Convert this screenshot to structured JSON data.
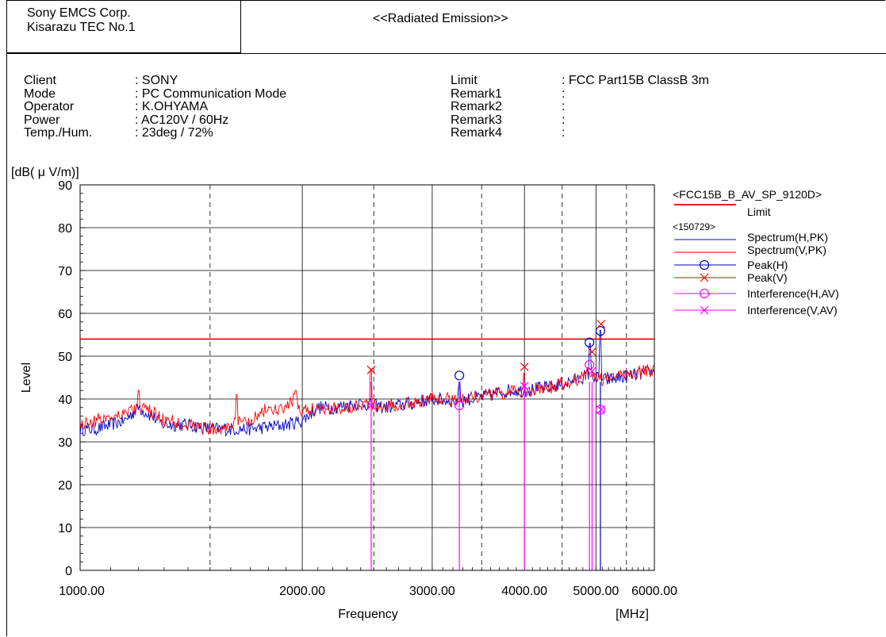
{
  "header": {
    "company_line1": "Sony EMCS Corp.",
    "company_line2": "Kisarazu TEC No.1",
    "title": "<<Radiated Emission>>"
  },
  "info": {
    "labels": [
      "Client",
      "Mode",
      "Operator",
      "Power",
      "Temp./Hum."
    ],
    "values": [
      ": SONY",
      ": PC Communication Mode",
      ": K.OHYAMA",
      ": AC120V / 60Hz",
      ": 23deg / 72%"
    ],
    "right_labels": [
      "Limit",
      "Remark1",
      "Remark2",
      "Remark3",
      "Remark4"
    ],
    "right_values": [
      ": FCC Part15B ClassB 3m",
      ":",
      ":",
      ":",
      ":"
    ]
  },
  "legend": {
    "limit_file": "<FCC15B_B_AV_SP_9120D>",
    "limit_label": "Limit",
    "data_file": "<150729>",
    "items": [
      "Spectrum(H,PK)",
      "Spectrum(V,PK)",
      "Peak(H)",
      "Peak(V)",
      "Interference(H,AV)",
      "Interference(V,AV)"
    ]
  },
  "colors": {
    "limit": "#e00000",
    "spectrum_h": "#0000cc",
    "spectrum_v": "#ff0000",
    "peak_h": "#0000cc",
    "peak_v": "#ff0000",
    "interference": "#ff00ff"
  },
  "chart_data": {
    "type": "line",
    "ylabel_unit": "[dB( μ V/m)]",
    "ylabel": "Level",
    "xlabel": "Frequency",
    "xunit": "[MHz]",
    "x_scale": "log",
    "xlim": [
      1000,
      6000
    ],
    "ylim": [
      0,
      90
    ],
    "y_ticks": [
      "0",
      "10",
      "20",
      "30",
      "40",
      "50",
      "60",
      "70",
      "80",
      "90"
    ],
    "x_tick_labels": [
      {
        "value": 1000,
        "label": "1000.00"
      },
      {
        "value": 2000,
        "label": "2000.00"
      },
      {
        "value": 3000,
        "label": "3000.00"
      },
      {
        "value": 4000,
        "label": "4000.00"
      },
      {
        "value": 5000,
        "label": "5000.00"
      },
      {
        "value": 6000,
        "label": "6000.00"
      }
    ],
    "grid": true,
    "legend_position": "right",
    "limit_line": {
      "name": "Limit",
      "value": 54
    },
    "series": [
      {
        "name": "Spectrum(H,PK)",
        "x": [
          1000,
          1050,
          1100,
          1150,
          1200,
          1250,
          1300,
          1400,
          1500,
          1550,
          1600,
          1700,
          1800,
          1900,
          2000,
          2100,
          2200,
          2300,
          2400,
          2500,
          2600,
          2800,
          3000,
          3200,
          3400,
          3600,
          3800,
          4000,
          4200,
          4400,
          4600,
          4800,
          4900,
          5000,
          5100,
          5200,
          5400,
          5600,
          5800,
          6000
        ],
        "values": [
          33,
          33,
          34,
          35,
          38,
          36,
          34,
          34,
          33,
          33,
          33,
          33,
          33.5,
          34,
          35,
          38,
          38,
          38.5,
          39,
          38.5,
          38,
          39,
          40,
          39.5,
          40,
          41,
          42,
          42,
          42.5,
          43,
          44,
          45,
          46,
          45,
          44.5,
          44.5,
          45,
          45.5,
          46,
          46.5
        ]
      },
      {
        "name": "Spectrum(V,PK)",
        "x": [
          1000,
          1050,
          1100,
          1150,
          1200,
          1250,
          1300,
          1400,
          1500,
          1550,
          1600,
          1700,
          1800,
          1850,
          1900,
          1950,
          2000,
          2100,
          2200,
          2300,
          2400,
          2500,
          2600,
          2800,
          3000,
          3200,
          3400,
          3600,
          3800,
          4000,
          4200,
          4400,
          4600,
          4800,
          4900,
          5000,
          5100,
          5200,
          5400,
          5600,
          5800,
          6000
        ],
        "values": [
          34,
          35,
          36,
          37,
          38,
          37,
          35,
          34,
          33,
          33,
          34,
          35,
          38,
          37,
          38,
          40,
          37,
          38,
          38,
          38,
          39,
          38.5,
          38.5,
          39,
          40,
          40,
          40.5,
          41,
          41.5,
          42,
          42,
          43,
          44,
          45,
          46.5,
          45.5,
          44.5,
          45,
          45.5,
          46,
          46.5,
          47
        ]
      },
      {
        "name": "Peak(H)",
        "x": [
          3265,
          4900,
          5070
        ],
        "values": [
          45.5,
          53.2,
          55.9
        ]
      },
      {
        "name": "Peak(V)",
        "x": [
          2480,
          4000,
          4940,
          5080
        ],
        "values": [
          46.8,
          47.5,
          51.0,
          57.5
        ]
      },
      {
        "name": "Interference(H,AV)",
        "x": [
          3265,
          4900,
          5070
        ],
        "values": [
          38.5,
          48.0,
          37.5
        ]
      },
      {
        "name": "Interference(V,AV)",
        "x": [
          2480,
          4000,
          4940,
          5080
        ],
        "values": [
          38.5,
          43.0,
          46.5,
          37.5
        ]
      }
    ],
    "spikes": [
      {
        "name": "Spectrum(V,PK)",
        "x": 1200,
        "value": 42
      },
      {
        "name": "Spectrum(V,PK)",
        "x": 1630,
        "value": 41
      },
      {
        "name": "Spectrum(V,PK)",
        "x": 1960,
        "value": 42
      },
      {
        "name": "Spectrum(V,PK)",
        "x": 2480,
        "value": 47
      },
      {
        "name": "Spectrum(H,PK)",
        "x": 3265,
        "value": 44
      },
      {
        "name": "Spectrum(V,PK)",
        "x": 4000,
        "value": 46
      },
      {
        "name": "Spectrum(H,PK)",
        "x": 4900,
        "value": 53
      },
      {
        "name": "Spectrum(H,PK)",
        "x": 5070,
        "value": 56
      }
    ],
    "markers": [
      {
        "name": "Interference",
        "x": 2480
      },
      {
        "name": "Interference",
        "x": 3265
      },
      {
        "name": "Interference",
        "x": 4000
      },
      {
        "name": "Interference",
        "x": 4900
      },
      {
        "name": "Interference",
        "x": 4940
      },
      {
        "name": "Peak",
        "x": 5070
      }
    ]
  }
}
